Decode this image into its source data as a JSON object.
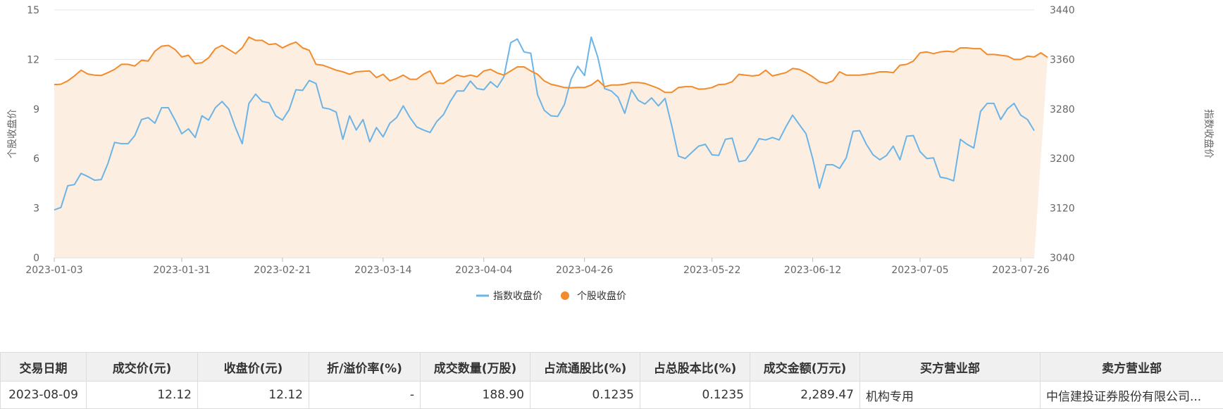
{
  "chart_data": {
    "type": "line",
    "x_ticks": [
      "2023-01-03",
      "2023-01-31",
      "2023-02-21",
      "2023-03-14",
      "2023-04-04",
      "2023-04-26",
      "2023-05-22",
      "2023-06-12",
      "2023-07-05",
      "2023-07-26"
    ],
    "y_left": {
      "label": "个股收盘价",
      "ticks": [
        "0",
        "3",
        "6",
        "9",
        "12",
        "15"
      ],
      "range": [
        0,
        15
      ]
    },
    "y_right": {
      "label": "指数收盘价",
      "ticks": [
        "3040",
        "3120",
        "3200",
        "3280",
        "3360",
        "3440"
      ],
      "range": [
        3040,
        3440
      ]
    },
    "grid": true,
    "legend_position": "bottom",
    "series": [
      {
        "name": "指数收盘价",
        "axis": "right",
        "color": "#6cb4e6",
        "values": [
          3117,
          3121,
          3156,
          3158,
          3176,
          3171,
          3165,
          3166,
          3192,
          3226,
          3224,
          3224,
          3237,
          3263,
          3266,
          3257,
          3282,
          3282,
          3262,
          3240,
          3248,
          3234,
          3269,
          3262,
          3282,
          3292,
          3280,
          3250,
          3224,
          3289,
          3304,
          3292,
          3290,
          3269,
          3262,
          3279,
          3311,
          3310,
          3326,
          3321,
          3282,
          3280,
          3275,
          3231,
          3269,
          3246,
          3263,
          3227,
          3250,
          3235,
          3257,
          3266,
          3285,
          3266,
          3251,
          3246,
          3242,
          3260,
          3271,
          3292,
          3309,
          3309,
          3325,
          3313,
          3311,
          3324,
          3315,
          3332,
          3387,
          3393,
          3372,
          3370,
          3303,
          3278,
          3269,
          3268,
          3287,
          3328,
          3349,
          3334,
          3396,
          3363,
          3313,
          3309,
          3299,
          3273,
          3311,
          3294,
          3288,
          3298,
          3285,
          3297,
          3253,
          3204,
          3200,
          3210,
          3220,
          3223,
          3206,
          3205,
          3231,
          3233,
          3195,
          3197,
          3212,
          3232,
          3230,
          3234,
          3230,
          3251,
          3270,
          3255,
          3240,
          3200,
          3152,
          3190,
          3190,
          3184,
          3201,
          3244,
          3245,
          3223,
          3206,
          3198,
          3205,
          3220,
          3198,
          3236,
          3237,
          3211,
          3200,
          3201,
          3170,
          3168,
          3164,
          3231,
          3223,
          3217,
          3276,
          3289,
          3289,
          3263,
          3280,
          3289,
          3270,
          3263,
          3245
        ]
      },
      {
        "name": "个股收盘价",
        "axis": "left",
        "color": "#f28b2b",
        "values": [
          10.48,
          10.5,
          10.7,
          11.0,
          11.35,
          11.12,
          11.05,
          11.03,
          11.2,
          11.4,
          11.7,
          11.7,
          11.6,
          11.95,
          11.9,
          12.5,
          12.8,
          12.85,
          12.6,
          12.15,
          12.25,
          11.75,
          11.8,
          12.1,
          12.65,
          12.85,
          12.6,
          12.35,
          12.7,
          13.35,
          13.15,
          13.15,
          12.9,
          12.95,
          12.7,
          12.9,
          13.05,
          12.7,
          12.55,
          11.7,
          11.65,
          11.5,
          11.35,
          11.25,
          11.1,
          11.25,
          11.28,
          11.3,
          10.9,
          11.1,
          10.7,
          10.85,
          11.05,
          10.8,
          10.8,
          11.1,
          11.3,
          10.55,
          10.55,
          10.8,
          11.05,
          10.95,
          11.05,
          10.95,
          11.3,
          11.4,
          11.18,
          11.05,
          11.3,
          11.55,
          11.55,
          11.3,
          11.1,
          10.7,
          10.5,
          10.4,
          10.3,
          10.28,
          10.3,
          10.3,
          10.45,
          10.75,
          10.35,
          10.45,
          10.45,
          10.5,
          10.6,
          10.6,
          10.55,
          10.4,
          10.25,
          10.0,
          10.0,
          10.3,
          10.35,
          10.35,
          10.2,
          10.22,
          10.3,
          10.48,
          10.5,
          10.65,
          11.1,
          11.05,
          11.0,
          11.05,
          11.35,
          11.0,
          11.1,
          11.2,
          11.45,
          11.4,
          11.2,
          10.95,
          10.65,
          10.55,
          10.7,
          11.25,
          11.05,
          11.05,
          11.05,
          11.1,
          11.15,
          11.25,
          11.25,
          11.2,
          11.65,
          11.7,
          11.9,
          12.4,
          12.45,
          12.35,
          12.45,
          12.5,
          12.45,
          12.7,
          12.7,
          12.65,
          12.65,
          12.3,
          12.3,
          12.25,
          12.2,
          12.0,
          12.0,
          12.2,
          12.15,
          12.4,
          12.12
        ]
      }
    ]
  },
  "legend": [
    {
      "label": "指数收盘价",
      "color": "#6cb4e6"
    },
    {
      "label": "个股收盘价",
      "color": "#f28b2b"
    }
  ],
  "table": {
    "headers": [
      "交易日期",
      "成交价(元)",
      "收盘价(元)",
      "折/溢价率(%)",
      "成交数量(万股)",
      "占流通股比(%)",
      "占总股本比(%)",
      "成交金额(万元)",
      "买方营业部",
      "卖方营业部"
    ],
    "row": [
      "2023-08-09",
      "12.12",
      "12.12",
      "-",
      "188.90",
      "0.1235",
      "0.1235",
      "2,289.47",
      "机构专用",
      "中信建投证券股份有限公司..."
    ]
  }
}
